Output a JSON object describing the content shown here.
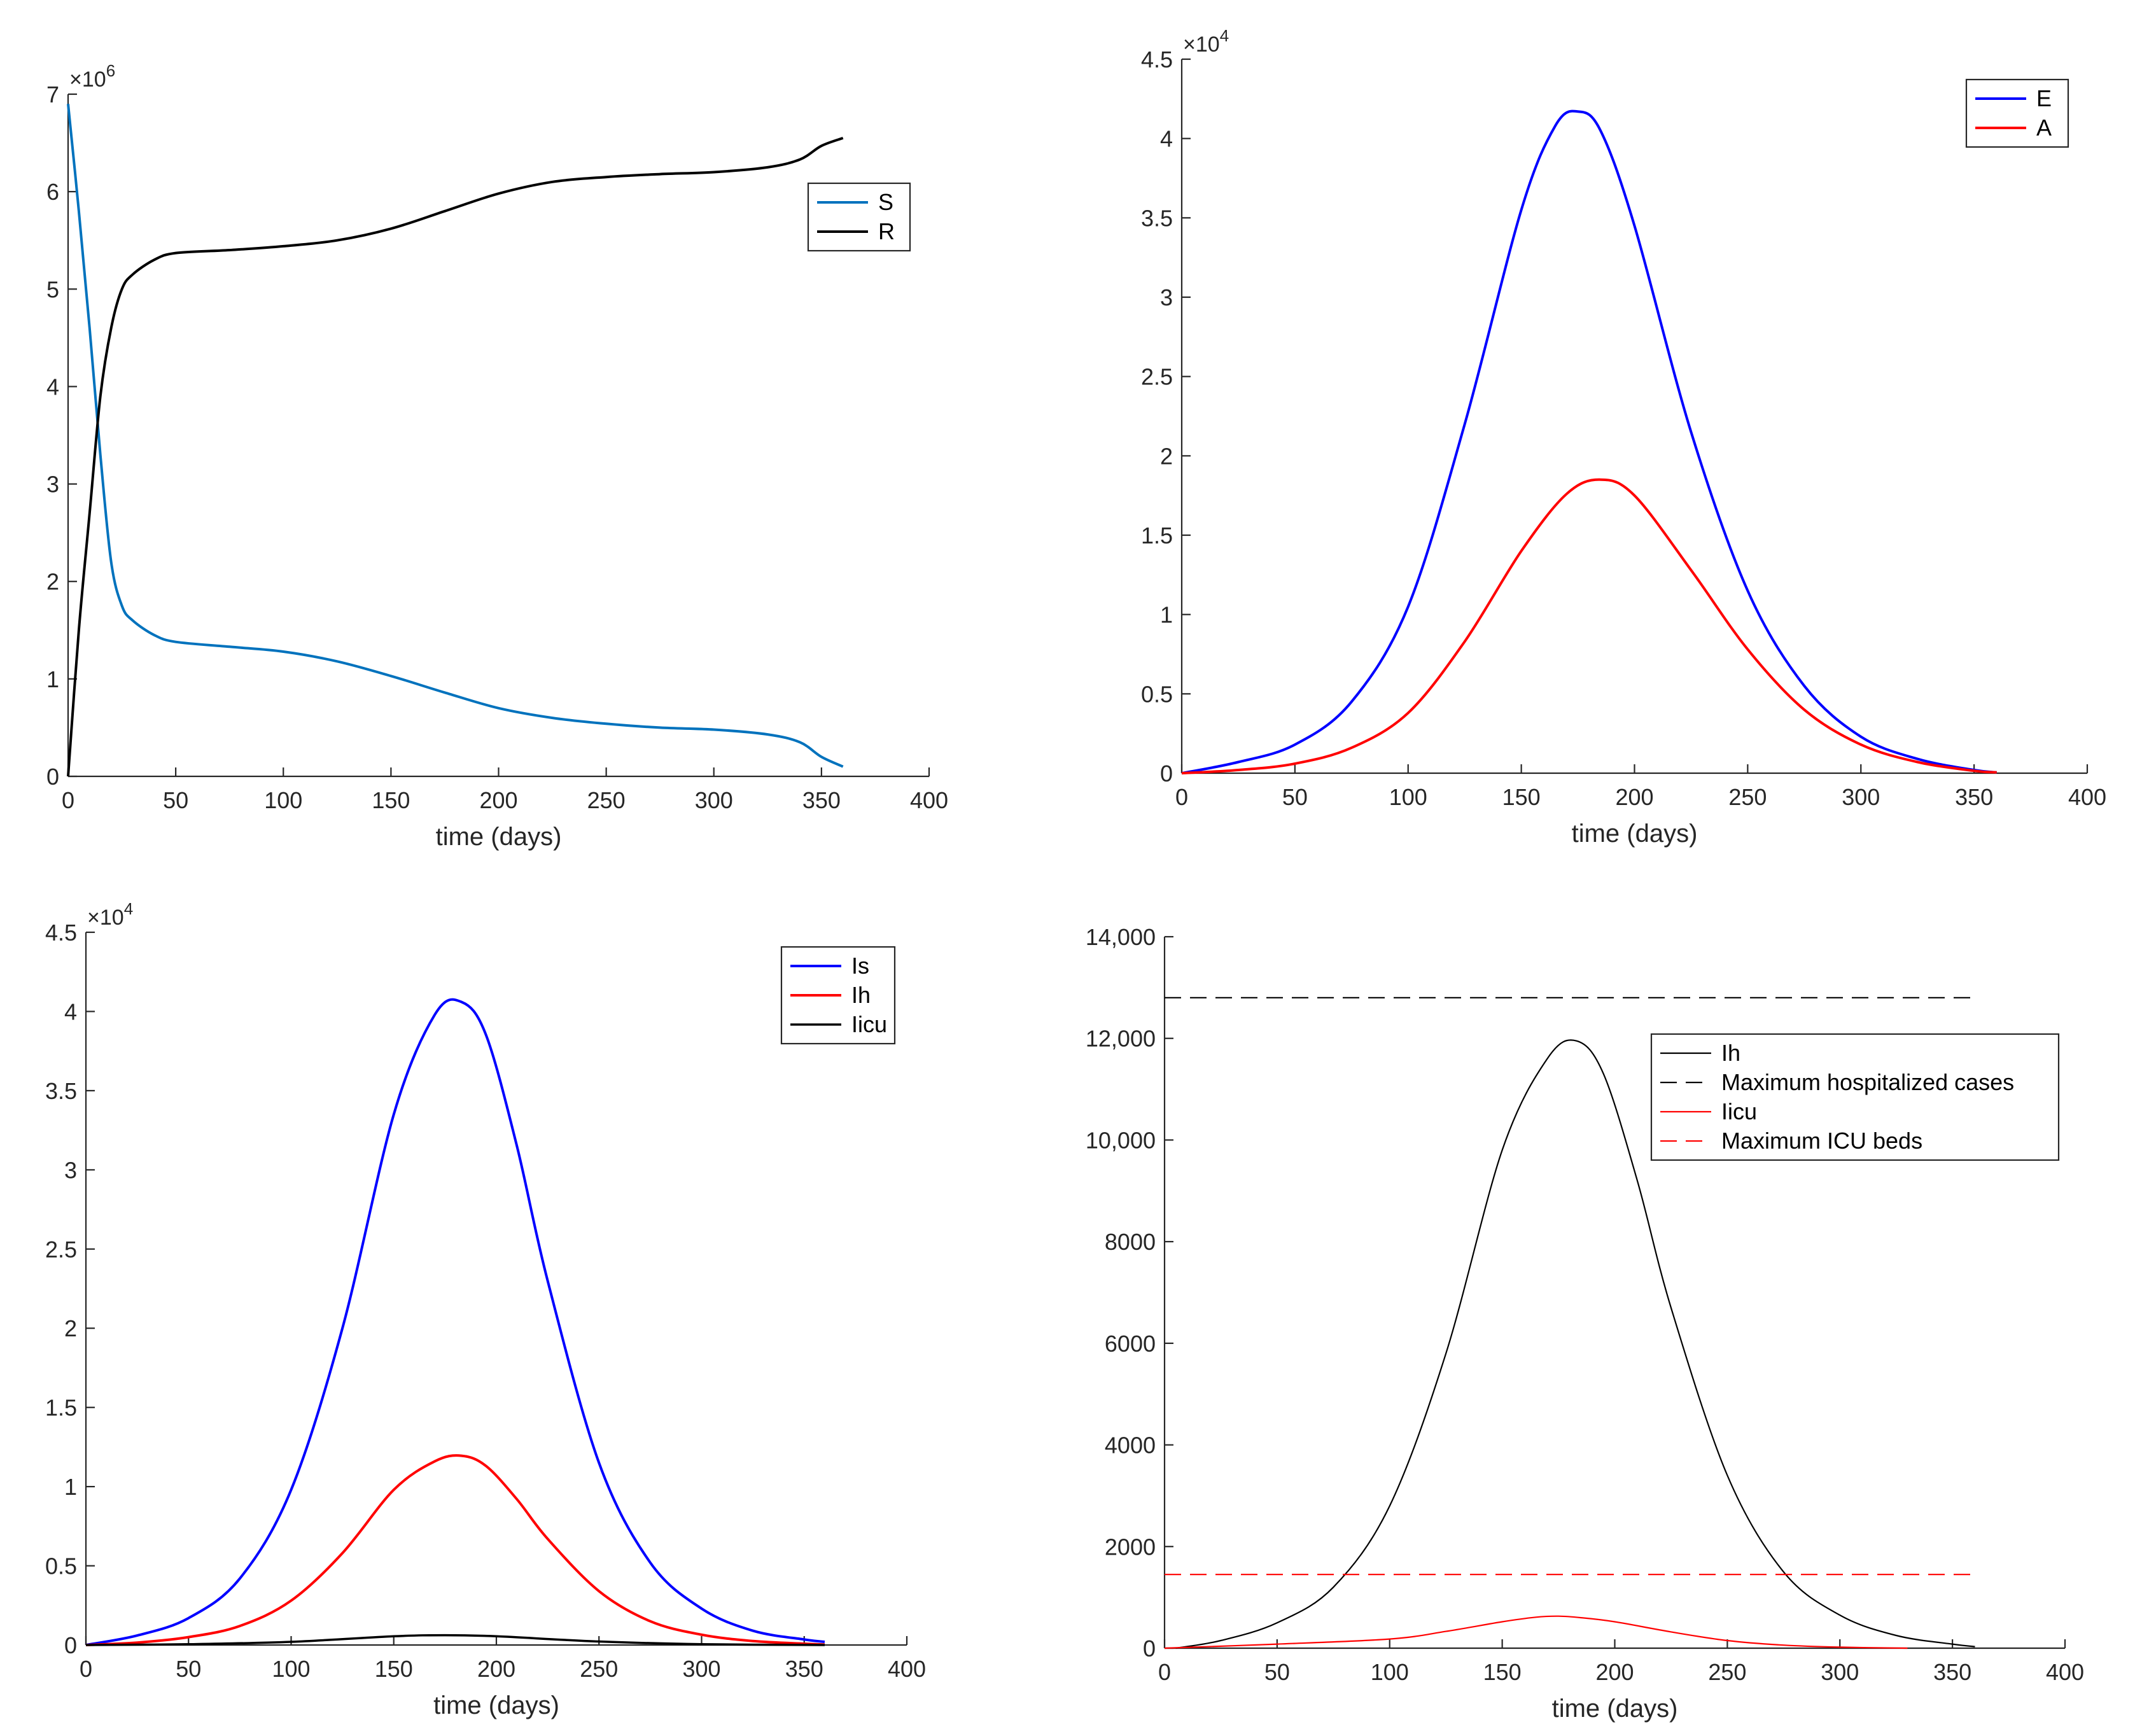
{
  "chart_data": [
    {
      "id": "panel-sr",
      "type": "line",
      "title": "",
      "xlabel": "time (days)",
      "ylabel": "",
      "xlim": [
        0,
        400
      ],
      "ylim": [
        0,
        7000000
      ],
      "x_ticks": [
        0,
        50,
        100,
        150,
        200,
        250,
        300,
        350,
        400
      ],
      "x_tick_labels": [
        "0",
        "50",
        "100",
        "150",
        "200",
        "250",
        "300",
        "350",
        "400"
      ],
      "y_ticks": [
        0,
        1000000,
        2000000,
        3000000,
        4000000,
        5000000,
        6000000,
        7000000
      ],
      "y_tick_labels": [
        "0",
        "1",
        "2",
        "3",
        "4",
        "5",
        "6",
        "7"
      ],
      "y_exponent": {
        "base": "×10",
        "power": "6"
      },
      "legend_position": "top-right",
      "series": [
        {
          "name": "S",
          "color": "#0072BD",
          "dash": "solid",
          "width": 4,
          "x": [
            0,
            5,
            10,
            15,
            20,
            25,
            30,
            40,
            50,
            75,
            100,
            125,
            150,
            175,
            200,
            225,
            250,
            275,
            300,
            325,
            340,
            350,
            360
          ],
          "y": [
            6900000,
            5800000,
            4600000,
            3300000,
            2200000,
            1750000,
            1600000,
            1450000,
            1380000,
            1330000,
            1280000,
            1180000,
            1030000,
            860000,
            700000,
            600000,
            540000,
            500000,
            480000,
            430000,
            350000,
            200000,
            100000
          ]
        },
        {
          "name": "R",
          "color": "#000000",
          "dash": "solid",
          "width": 4,
          "x": [
            0,
            5,
            10,
            15,
            20,
            25,
            30,
            40,
            50,
            75,
            100,
            125,
            150,
            175,
            200,
            225,
            250,
            275,
            300,
            325,
            340,
            350,
            360
          ],
          "y": [
            0,
            1500000,
            2700000,
            3900000,
            4600000,
            5000000,
            5150000,
            5300000,
            5370000,
            5400000,
            5440000,
            5500000,
            5620000,
            5800000,
            5980000,
            6100000,
            6150000,
            6180000,
            6200000,
            6250000,
            6330000,
            6470000,
            6550000
          ]
        }
      ]
    },
    {
      "id": "panel-ea",
      "type": "line",
      "title": "",
      "xlabel": "time (days)",
      "ylabel": "",
      "xlim": [
        0,
        400
      ],
      "ylim": [
        0,
        45000
      ],
      "x_ticks": [
        0,
        50,
        100,
        150,
        200,
        250,
        300,
        350,
        400
      ],
      "x_tick_labels": [
        "0",
        "50",
        "100",
        "150",
        "200",
        "250",
        "300",
        "350",
        "400"
      ],
      "y_ticks": [
        0,
        5000,
        10000,
        15000,
        20000,
        25000,
        30000,
        35000,
        40000,
        45000
      ],
      "y_tick_labels": [
        "0",
        "0.5",
        "1",
        "1.5",
        "2",
        "2.5",
        "3",
        "3.5",
        "4",
        "4.5"
      ],
      "y_exponent": {
        "base": "×10",
        "power": "4"
      },
      "legend_position": "top-right",
      "series": [
        {
          "name": "E",
          "color": "#0000FF",
          "dash": "solid",
          "width": 4,
          "x": [
            0,
            25,
            50,
            75,
            100,
            125,
            150,
            165,
            175,
            185,
            200,
            225,
            250,
            275,
            300,
            325,
            350,
            360
          ],
          "y": [
            0,
            700,
            1800,
            4500,
            10500,
            22000,
            35500,
            40800,
            41700,
            40500,
            34500,
            21500,
            11500,
            5500,
            2300,
            900,
            200,
            50
          ]
        },
        {
          "name": "A",
          "color": "#FF0000",
          "dash": "solid",
          "width": 4,
          "x": [
            0,
            25,
            50,
            75,
            100,
            125,
            150,
            170,
            185,
            200,
            225,
            250,
            275,
            300,
            325,
            350,
            360
          ],
          "y": [
            0,
            200,
            600,
            1600,
            3800,
            8300,
            14000,
            17600,
            18500,
            17500,
            12800,
            7800,
            4000,
            1800,
            700,
            150,
            50
          ]
        }
      ]
    },
    {
      "id": "panel-infected",
      "type": "line",
      "title": "",
      "xlabel": "time (days)",
      "ylabel": "",
      "xlim": [
        0,
        400
      ],
      "ylim": [
        0,
        45000
      ],
      "x_ticks": [
        0,
        50,
        100,
        150,
        200,
        250,
        300,
        350,
        400
      ],
      "x_tick_labels": [
        "0",
        "50",
        "100",
        "150",
        "200",
        "250",
        "300",
        "350",
        "400"
      ],
      "y_ticks": [
        0,
        5000,
        10000,
        15000,
        20000,
        25000,
        30000,
        35000,
        40000,
        45000
      ],
      "y_tick_labels": [
        "0",
        "0.5",
        "1",
        "1.5",
        "2",
        "2.5",
        "3",
        "3.5",
        "4",
        "4.5"
      ],
      "y_exponent": {
        "base": "×10",
        "power": "4"
      },
      "legend_position": "top-right",
      "series": [
        {
          "name": "Is",
          "color": "#0000FF",
          "dash": "solid",
          "width": 4,
          "x": [
            0,
            25,
            50,
            75,
            100,
            125,
            150,
            170,
            183,
            195,
            210,
            225,
            250,
            275,
            300,
            325,
            350,
            360
          ],
          "y": [
            0,
            600,
            1700,
            4200,
            9800,
            20000,
            33500,
            39800,
            40600,
            38500,
            31500,
            23000,
            11500,
            5200,
            2300,
            900,
            350,
            200
          ]
        },
        {
          "name": "Ih",
          "color": "#FF0000",
          "dash": "solid",
          "width": 4,
          "x": [
            0,
            25,
            50,
            75,
            100,
            125,
            150,
            170,
            183,
            195,
            210,
            225,
            250,
            275,
            300,
            325,
            350,
            360
          ],
          "y": [
            0,
            150,
            500,
            1200,
            2800,
            5800,
            9800,
            11600,
            11950,
            11300,
            9200,
            6700,
            3400,
            1500,
            650,
            250,
            80,
            30
          ]
        },
        {
          "name": "Iicu",
          "color": "#000000",
          "dash": "solid",
          "width": 3.5,
          "x": [
            0,
            50,
            100,
            150,
            175,
            200,
            250,
            300,
            360
          ],
          "y": [
            0,
            50,
            200,
            550,
            620,
            550,
            220,
            50,
            0
          ]
        }
      ]
    },
    {
      "id": "panel-capacity",
      "type": "line",
      "title": "",
      "xlabel": "time (days)",
      "ylabel": "",
      "xlim": [
        0,
        400
      ],
      "ylim": [
        0,
        14000
      ],
      "x_ticks": [
        0,
        50,
        100,
        150,
        200,
        250,
        300,
        350,
        400
      ],
      "x_tick_labels": [
        "0",
        "50",
        "100",
        "150",
        "200",
        "250",
        "300",
        "350",
        "400"
      ],
      "y_ticks": [
        0,
        2000,
        4000,
        6000,
        8000,
        10000,
        12000,
        14000
      ],
      "y_tick_labels": [
        "0",
        "2000",
        "4000",
        "6000",
        "8000",
        "10,000",
        "12,000",
        "14,000"
      ],
      "legend_position": "top-right",
      "series": [
        {
          "name": "Ih",
          "color": "#000000",
          "dash": "solid",
          "width": 2.2,
          "x": [
            5,
            25,
            50,
            75,
            100,
            125,
            150,
            170,
            183,
            195,
            210,
            225,
            250,
            275,
            300,
            325,
            350,
            360
          ],
          "y": [
            0,
            150,
            500,
            1200,
            2800,
            5800,
            9800,
            11600,
            11950,
            11300,
            9200,
            6700,
            3400,
            1500,
            650,
            250,
            80,
            30
          ]
        },
        {
          "name": "Maximum hospitalized cases",
          "color": "#000000",
          "dash": "dashed",
          "width": 2.2,
          "x": [
            0,
            360
          ],
          "y": [
            12800,
            12800
          ]
        },
        {
          "name": "Iicu",
          "color": "#FF0000",
          "dash": "solid",
          "width": 2.2,
          "x": [
            0,
            50,
            100,
            125,
            150,
            165,
            175,
            185,
            200,
            225,
            250,
            275,
            300,
            330
          ],
          "y": [
            0,
            80,
            180,
            330,
            520,
            610,
            630,
            600,
            520,
            320,
            150,
            60,
            20,
            0
          ]
        },
        {
          "name": "Maximum ICU beds",
          "color": "#FF0000",
          "dash": "dashed",
          "width": 2.2,
          "x": [
            0,
            360
          ],
          "y": [
            1450,
            1450
          ]
        }
      ]
    }
  ]
}
